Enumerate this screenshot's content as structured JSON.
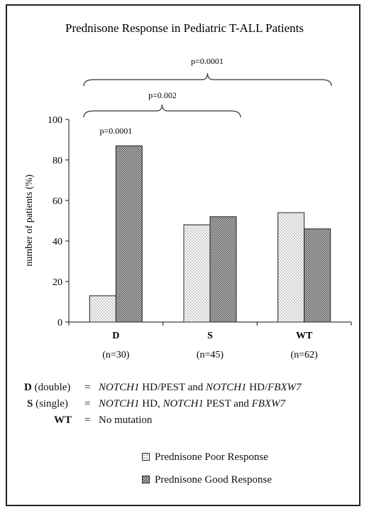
{
  "chart_data": {
    "type": "bar",
    "title": "Prednisone Response in Pediatric T-ALL Patients",
    "ylabel": "number of patients (%)",
    "xlabel": "",
    "ylim": [
      0,
      100
    ],
    "yticks": [
      0,
      20,
      40,
      60,
      80,
      100
    ],
    "categories": [
      "D",
      "S",
      "WT"
    ],
    "category_sublabels": [
      "(n=30)",
      "(n=45)",
      "(n=62)"
    ],
    "series": [
      {
        "name": "Prednisone Poor Response",
        "values": [
          13,
          48,
          54
        ]
      },
      {
        "name": "Prednisone Good Response",
        "values": [
          87,
          52,
          46
        ]
      }
    ],
    "annotations": {
      "bar_pvalue": "p=0.0001",
      "bracket_outer": "p=0.0001",
      "bracket_inner": "p=0.002"
    },
    "grid": false,
    "legend_position": "bottom"
  },
  "definitions": [
    {
      "key": "D",
      "key_suffix": " (double)",
      "eq": "=",
      "parts": [
        {
          "text": "NOTCH1",
          "italic": true
        },
        {
          "text": " HD/PEST and ",
          "italic": false
        },
        {
          "text": "NOTCH1",
          "italic": true
        },
        {
          "text": " HD/",
          "italic": false
        },
        {
          "text": "FBXW7",
          "italic": true
        }
      ]
    },
    {
      "key": "S",
      "key_suffix": " (single)",
      "eq": "=",
      "parts": [
        {
          "text": "NOTCH1",
          "italic": true
        },
        {
          "text": " HD, ",
          "italic": false
        },
        {
          "text": "NOTCH1",
          "italic": true
        },
        {
          "text": " PEST and ",
          "italic": false
        },
        {
          "text": "FBXW7",
          "italic": true
        }
      ]
    },
    {
      "key": "WT",
      "key_suffix": "",
      "eq": "=",
      "parts": [
        {
          "text": "No mutation",
          "italic": false
        }
      ]
    }
  ],
  "legend": [
    {
      "label": "Prednisone Poor Response",
      "pattern": "dots"
    },
    {
      "label": "Prednisone Good Response",
      "pattern": "crosshatch"
    }
  ]
}
